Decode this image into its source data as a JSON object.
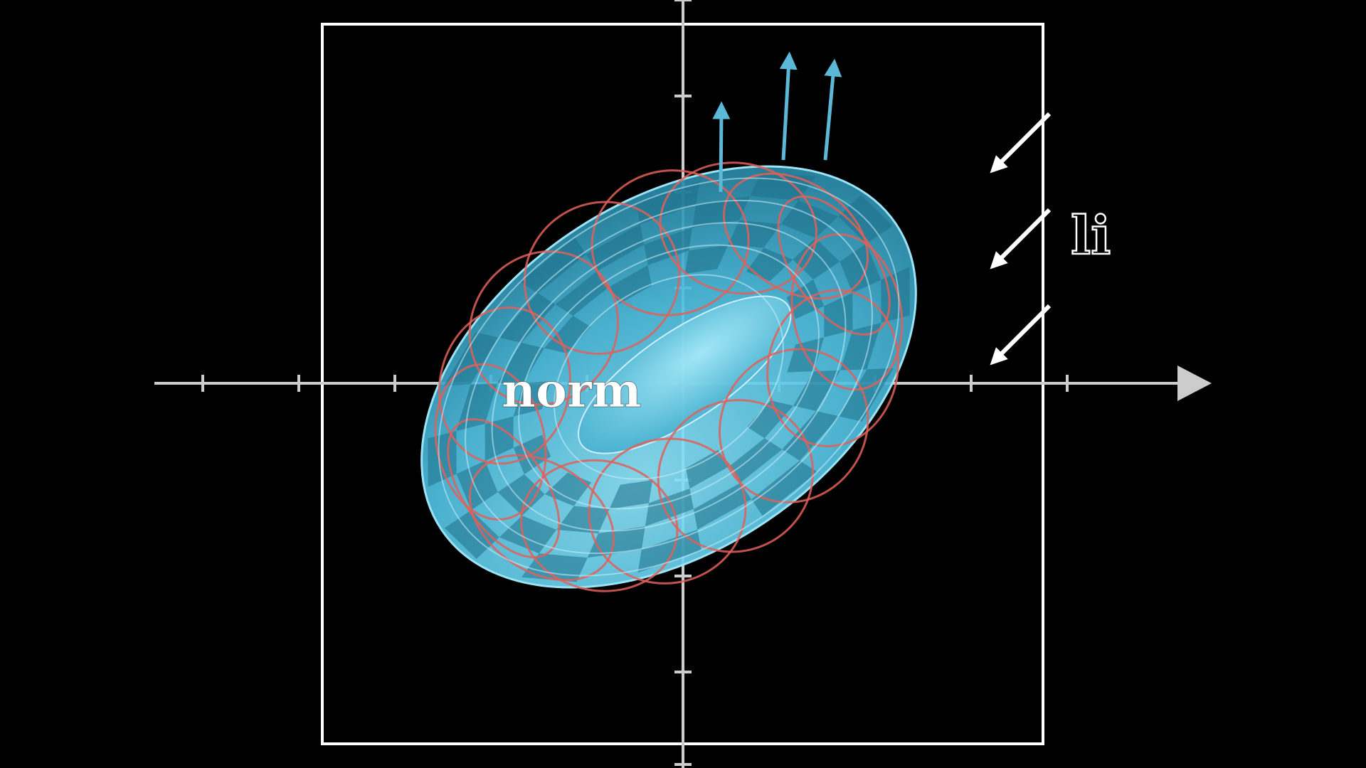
{
  "labels": {
    "normal": "norm",
    "light": "li"
  },
  "colors": {
    "background": "#000000",
    "axis": "#cccccc",
    "frame": "#ffffff",
    "torus_fill": "#5fd0ef",
    "torus_dark": "#1d6f88",
    "torus_grid": "#e0605a",
    "normal_arrow": "#5bb8d6",
    "light_arrow": "#ffffff"
  },
  "diagram": {
    "x_axis_ticks": 9,
    "y_axis_ticks": 8,
    "normal_vectors": 3,
    "light_rays": 3
  }
}
